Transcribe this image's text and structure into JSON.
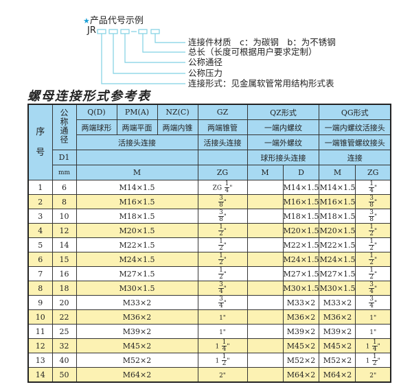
{
  "example": {
    "star_icon": "star-icon",
    "title": "产品代号示例",
    "code_prefix": "JR",
    "labels": [
      "连接件材质　c：为碳钢　b：为不锈钢",
      "总长（长度可根据用户要求定制）",
      "公称通径",
      "公称压力",
      "连接形式：见金属软管常用结构形式表"
    ],
    "line_color": "#7fd0e3"
  },
  "table_title": "螺母连接形式参考表",
  "header": {
    "seq": [
      "序",
      "号"
    ],
    "nominal": "公称通径",
    "row1": [
      "Q(D)",
      "PM(A)",
      "NZ(C)",
      "GZ",
      "QZ形式",
      "QG形式"
    ],
    "row2": [
      "两端球形",
      "两端平面",
      "两端内锥",
      "两端锥管",
      "一端内螺纹",
      "一端内螺纹活接头"
    ],
    "row3": [
      "活接头连接",
      "活接头连接",
      "一端外螺纹",
      "一端锥管螺纹接头"
    ],
    "row4": [
      "D1",
      "",
      "",
      "球形接头连接",
      "连接"
    ],
    "row5": [
      "mm",
      "M",
      "ZG",
      "M",
      "D",
      "M",
      "ZG"
    ]
  },
  "colors": {
    "header_bg": "#a7d9f2",
    "alt_row_bg": "#fcf2b3"
  },
  "rows": [
    {
      "no": "1",
      "d1": "6",
      "m": "M14×1.5",
      "zg": {
        "whole": "ZG",
        "num": "1",
        "den": "4",
        "suffix": "\""
      },
      "qz_m": "",
      "qz_d": "M14×1.5",
      "qg_m": "M14×1.5",
      "qg_zg": {
        "whole": "",
        "num": "1",
        "den": "4",
        "suffix": "\""
      }
    },
    {
      "no": "2",
      "d1": "8",
      "m": "M16×1.5",
      "zg": {
        "whole": "",
        "num": "3",
        "den": "8",
        "suffix": "\""
      },
      "qz_m": "",
      "qz_d": "M16×1.5",
      "qg_m": "M16×1.5",
      "qg_zg": {
        "whole": "",
        "num": "3",
        "den": "8",
        "suffix": "\""
      }
    },
    {
      "no": "3",
      "d1": "10",
      "m": "M18×1.5",
      "zg": {
        "whole": "",
        "num": "3",
        "den": "8",
        "suffix": "\""
      },
      "qz_m": "",
      "qz_d": "M18×1.5",
      "qg_m": "M18×1.5",
      "qg_zg": {
        "whole": "",
        "num": "3",
        "den": "8",
        "suffix": "\""
      }
    },
    {
      "no": "4",
      "d1": "12",
      "m": "M20×1.5",
      "zg": {
        "whole": "",
        "num": "1",
        "den": "2",
        "suffix": "\""
      },
      "qz_m": "",
      "qz_d": "M20×1.5",
      "qg_m": "M20×1.5",
      "qg_zg": {
        "whole": "",
        "num": "1",
        "den": "2",
        "suffix": "\""
      }
    },
    {
      "no": "5",
      "d1": "14",
      "m": "M22×1.5",
      "zg": {
        "whole": "",
        "num": "1",
        "den": "2",
        "suffix": "\""
      },
      "qz_m": "",
      "qz_d": "M22×1.5",
      "qg_m": "M22×1.5",
      "qg_zg": {
        "whole": "",
        "num": "1",
        "den": "2",
        "suffix": "\""
      }
    },
    {
      "no": "6",
      "d1": "15",
      "m": "M24×1.5",
      "zg": {
        "whole": "",
        "num": "1",
        "den": "2",
        "suffix": "\""
      },
      "qz_m": "",
      "qz_d": "M24×1.5",
      "qg_m": "M24×1.5",
      "qg_zg": {
        "whole": "",
        "num": "1",
        "den": "2",
        "suffix": "\""
      }
    },
    {
      "no": "7",
      "d1": "16",
      "m": "M27×1.5",
      "zg": {
        "whole": "",
        "num": "1",
        "den": "2",
        "suffix": "\""
      },
      "qz_m": "",
      "qz_d": "M27×1.5",
      "qg_m": "M27×1.5",
      "qg_zg": {
        "whole": "",
        "num": "1",
        "den": "2",
        "suffix": "\""
      }
    },
    {
      "no": "8",
      "d1": "18",
      "m": "M30×1.5",
      "zg": {
        "whole": "",
        "num": "3",
        "den": "4",
        "suffix": "\""
      },
      "qz_m": "",
      "qz_d": "M30×1.5",
      "qg_m": "M30×1.5",
      "qg_zg": {
        "whole": "",
        "num": "3",
        "den": "4",
        "suffix": "\""
      }
    },
    {
      "no": "9",
      "d1": "20",
      "m": "M33×2",
      "zg": {
        "whole": "",
        "num": "3",
        "den": "4",
        "suffix": "\""
      },
      "qz_m": "",
      "qz_d": "M33×2",
      "qg_m": "M33×2",
      "qg_zg": {
        "whole": "",
        "num": "3",
        "den": "4",
        "suffix": "\""
      }
    },
    {
      "no": "10",
      "d1": "22",
      "m": "M36×2",
      "zg": {
        "text": "1\""
      },
      "qz_m": "",
      "qz_d": "M36×2",
      "qg_m": "M36×2",
      "qg_zg": {
        "text": "1\""
      }
    },
    {
      "no": "11",
      "d1": "25",
      "m": "M39×2",
      "zg": {
        "text": "1\""
      },
      "qz_m": "",
      "qz_d": "M39×2",
      "qg_m": "M39×2",
      "qg_zg": {
        "text": "1\""
      }
    },
    {
      "no": "12",
      "d1": "32",
      "m": "M45×2",
      "zg": {
        "whole": "1",
        "num": "1",
        "den": "4",
        "suffix": "\""
      },
      "qz_m": "",
      "qz_d": "M45×2",
      "qg_m": "M45×2",
      "qg_zg": {
        "whole": "1",
        "num": "1",
        "den": "4",
        "suffix": "\""
      }
    },
    {
      "no": "13",
      "d1": "40",
      "m": "M52×2",
      "zg": {
        "whole": "1",
        "num": "1",
        "den": "2",
        "suffix": "\""
      },
      "qz_m": "",
      "qz_d": "M52×2",
      "qg_m": "M52×2",
      "qg_zg": {
        "whole": "1",
        "num": "1",
        "den": "2",
        "suffix": "\""
      }
    },
    {
      "no": "14",
      "d1": "50",
      "m": "M64×2",
      "zg": {
        "text": "2\""
      },
      "qz_m": "",
      "qz_d": "M64×2",
      "qg_m": "M64×2",
      "qg_zg": {
        "text": "2\""
      }
    }
  ]
}
